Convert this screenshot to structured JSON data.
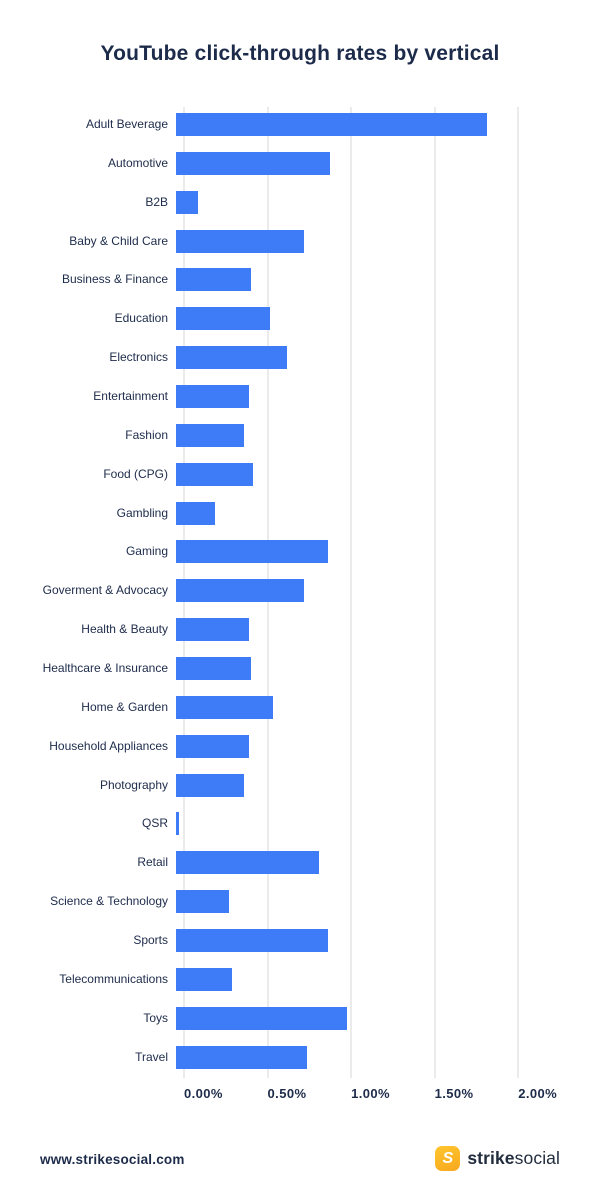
{
  "title": "YouTube click-through rates by vertical",
  "chart_data": {
    "type": "bar",
    "orientation": "horizontal",
    "title": "YouTube click-through rates by vertical",
    "categories": [
      "Adult Beverage",
      "Automotive",
      "B2B",
      "Baby & Child Care",
      "Business & Finance",
      "Education",
      "Electronics",
      "Entertainment",
      "Fashion",
      "Food (CPG)",
      "Gambling",
      "Gaming",
      "Goverment & Advocacy",
      "Health & Beauty",
      "Healthcare & Insurance",
      "Home & Garden",
      "Household Appliances",
      "Photography",
      "QSR",
      "Retail",
      "Science & Technology",
      "Sports",
      "Telecommunications",
      "Toys",
      "Travel"
    ],
    "values": [
      1.82,
      0.9,
      0.13,
      0.75,
      0.44,
      0.55,
      0.65,
      0.43,
      0.4,
      0.45,
      0.23,
      0.89,
      0.75,
      0.43,
      0.44,
      0.57,
      0.43,
      0.4,
      0.02,
      0.84,
      0.31,
      0.89,
      0.33,
      1.0,
      0.77
    ],
    "unit": "%",
    "xlim": [
      0,
      2.25
    ],
    "x_ticks": [
      {
        "value": 0.0,
        "label": "0.00%"
      },
      {
        "value": 0.5,
        "label": "0.50%"
      },
      {
        "value": 1.0,
        "label": "1.00%"
      },
      {
        "value": 1.5,
        "label": "1.50%"
      },
      {
        "value": 2.0,
        "label": "2.00%"
      }
    ],
    "grid": "vertical",
    "legend": "none",
    "bar_color": "#3e7cf7",
    "gridline_color": "#ebebeb",
    "text_color": "#1d2b4a"
  },
  "footer": {
    "url": "www.strikesocial.com",
    "logo": {
      "icon_glyph": "S",
      "text_bold": "strike",
      "text_regular": "social"
    }
  }
}
